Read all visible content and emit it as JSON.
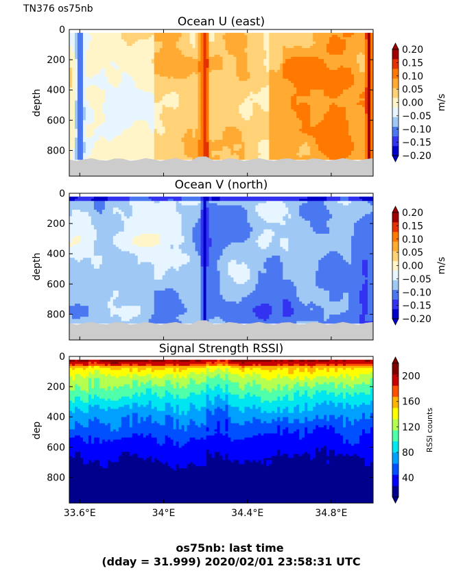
{
  "figure": {
    "corner_label": "TN376 os75nb",
    "footer_line1": "os75nb: last time",
    "footer_line2": "(dday = 31.999) 2020/02/01 23:58:31 UTC"
  },
  "chart_data": [
    {
      "type": "heatmap",
      "title": "Ocean U (east)",
      "ylabel": "depth",
      "xlim": [
        33.55,
        35.0
      ],
      "ylim": [
        970,
        0
      ],
      "x_ticks": [],
      "y_ticks": [
        0,
        200,
        400,
        600,
        800
      ],
      "y_tick_labels": [
        "0",
        "200",
        "400",
        "600",
        "800"
      ],
      "grid": false,
      "seafloor_depth": 860,
      "colorbar": {
        "label": "m/s",
        "range": [
          -0.2,
          0.2
        ],
        "ticks": [
          0.2,
          0.15,
          0.1,
          0.05,
          0.0,
          -0.05,
          -0.1,
          -0.15,
          -0.2
        ],
        "tick_labels": [
          "0.20",
          "0.15",
          "0.10",
          "0.05",
          "0.00",
          "−0.05",
          "−0.10",
          "−0.15",
          "−0.20"
        ],
        "colors": [
          "#0000c8",
          "#3232f0",
          "#4b78f0",
          "#a0c8f5",
          "#e6f5ff",
          "#fff5c8",
          "#ffd278",
          "#ffaa32",
          "#ff7800",
          "#e63200",
          "#a00000"
        ]
      },
      "features": [
        {
          "x": 34.2,
          "value": 0.2,
          "width": 0.012
        },
        {
          "x": 34.185,
          "value": 0.12,
          "width": 0.02
        },
        {
          "x": 34.98,
          "value": 0.18,
          "width": 0.015
        },
        {
          "x": 33.6,
          "value": -0.12,
          "width": 0.02
        },
        {
          "x": 34.3,
          "value": 0.05,
          "width": 0.3
        }
      ]
    },
    {
      "type": "heatmap",
      "title": "Ocean V (north)",
      "ylabel": "depth",
      "xlim": [
        33.55,
        35.0
      ],
      "ylim": [
        970,
        0
      ],
      "x_ticks": [],
      "y_ticks": [
        0,
        200,
        400,
        600,
        800
      ],
      "y_tick_labels": [
        "0",
        "200",
        "400",
        "600",
        "800"
      ],
      "grid": false,
      "seafloor_depth": 860,
      "colorbar": {
        "label": "m/s",
        "range": [
          -0.2,
          0.2
        ],
        "ticks": [
          0.2,
          0.15,
          0.1,
          0.05,
          0.0,
          -0.05,
          -0.1,
          -0.15,
          -0.2
        ],
        "tick_labels": [
          "0.20",
          "0.15",
          "0.10",
          "0.05",
          "0.00",
          "−0.05",
          "−0.10",
          "−0.15",
          "−0.20"
        ],
        "colors": [
          "#0000c8",
          "#3232f0",
          "#4b78f0",
          "#a0c8f5",
          "#e6f5ff",
          "#fff5c8",
          "#ffd278",
          "#ffaa32",
          "#ff7800",
          "#e63200",
          "#a00000"
        ]
      },
      "features": [
        {
          "x": 34.195,
          "value": -0.2,
          "width": 0.012
        }
      ]
    },
    {
      "type": "heatmap",
      "title": "Signal Strength RSSI)",
      "ylabel": "dep",
      "xlim": [
        33.55,
        35.0
      ],
      "ylim": [
        970,
        0
      ],
      "x_ticks": [
        33.6,
        34.0,
        34.4,
        34.8
      ],
      "x_tick_labels": [
        "33.6°E",
        "34°E",
        "34.4°E",
        "34.8°E"
      ],
      "y_ticks": [
        0,
        200,
        400,
        600,
        800
      ],
      "y_tick_labels": [
        "0",
        "200",
        "400",
        "600",
        "800"
      ],
      "grid": false,
      "colorbar": {
        "label": "RSSI counts",
        "range": [
          10,
          220
        ],
        "ticks": [
          200,
          160,
          120,
          80,
          40
        ],
        "tick_labels": [
          "200",
          "160",
          "120",
          "80",
          "40"
        ],
        "colors": [
          "#00008c",
          "#0000ff",
          "#0050ff",
          "#00a0ff",
          "#00e6f0",
          "#50ffaa",
          "#b4ff50",
          "#ffff00",
          "#ffb400",
          "#ff5000",
          "#c80000",
          "#800000"
        ]
      },
      "profile": [
        {
          "depth": 30,
          "value": 190
        },
        {
          "depth": 80,
          "value": 150
        },
        {
          "depth": 150,
          "value": 125
        },
        {
          "depth": 250,
          "value": 100
        },
        {
          "depth": 350,
          "value": 75
        },
        {
          "depth": 450,
          "value": 58
        },
        {
          "depth": 550,
          "value": 42
        },
        {
          "depth": 650,
          "value": 30
        },
        {
          "depth": 750,
          "value": 20
        },
        {
          "depth": 900,
          "value": 14
        }
      ]
    }
  ]
}
